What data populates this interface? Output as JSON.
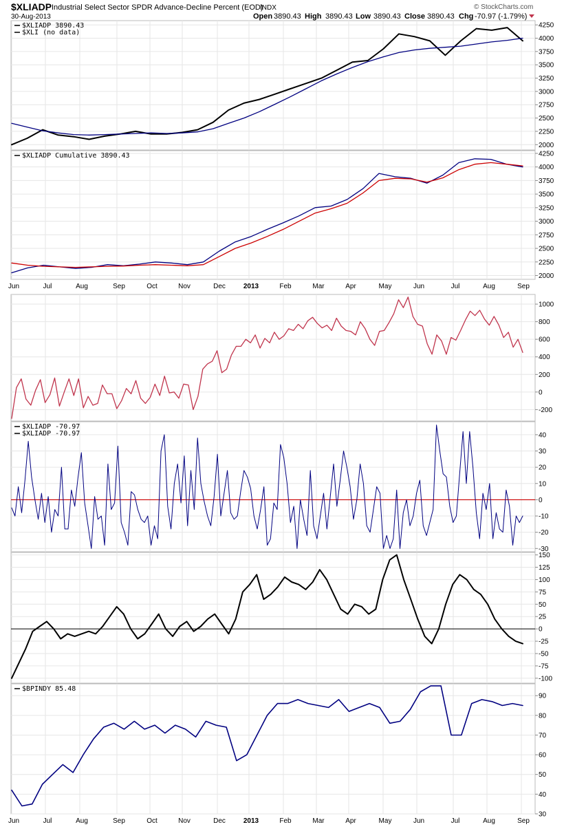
{
  "header": {
    "symbol": "$XLIADP",
    "description": "Industrial Select Sector SPDR Advance-Decline Percent (EOD)",
    "exchange": "INDX",
    "date": "30-Aug-2013",
    "open_label": "Open",
    "open_value": "3890.43",
    "high_label": "High",
    "high_value": "3890.43",
    "low_label": "Low",
    "low_value": "3890.43",
    "close_label": "Close",
    "close_value": "3890.43",
    "chg_label": "Chg",
    "chg_value": "-70.97 (-1.79%)",
    "copyright": "© StockCharts.com"
  },
  "colors": {
    "black": "#000000",
    "navy": "#000080",
    "red": "#cc0000",
    "crimson": "#c0344c",
    "grid": "#e6e6e6",
    "panel_border": "#bbbbbb"
  },
  "x_axis_top": [
    "Jun",
    "Jul",
    "Aug",
    "Sep",
    "Oct",
    "Nov",
    "Dec",
    "2013",
    "Feb",
    "Mar",
    "Apr",
    "May",
    "Jun",
    "Jul",
    "Aug",
    "Sep"
  ],
  "x_axis_bottom": [
    "Jun",
    "Jul",
    "Aug",
    "Sep",
    "Oct",
    "Nov",
    "Dec",
    "2013",
    "Feb",
    "Mar",
    "Apr",
    "May",
    "Jun",
    "Jul",
    "Aug",
    "Sep"
  ],
  "chart_data": [
    {
      "type": "line",
      "panel": "price",
      "legend": [
        {
          "label": "$XLIADP 3890.43",
          "color": "#000000"
        },
        {
          "label": "$XLI (no data)",
          "color": "#000000"
        }
      ],
      "ylim": [
        1900,
        4330
      ],
      "yticks": [
        2000,
        2250,
        2500,
        2750,
        3000,
        3250,
        3500,
        3750,
        4000,
        4250
      ],
      "series": [
        {
          "color": "#000000",
          "width": 2,
          "values": [
            2000,
            2120,
            2280,
            2180,
            2150,
            2100,
            2160,
            2200,
            2250,
            2200,
            2200,
            2230,
            2280,
            2420,
            2650,
            2780,
            2850,
            2950,
            3050,
            3150,
            3250,
            3400,
            3550,
            3580,
            3800,
            4080,
            4030,
            3950,
            3680,
            3950,
            4180,
            4150,
            4200,
            3950
          ]
        },
        {
          "color": "#000080",
          "width": 1.3,
          "values": [
            2400,
            2330,
            2260,
            2220,
            2190,
            2180,
            2190,
            2200,
            2210,
            2220,
            2210,
            2220,
            2240,
            2300,
            2400,
            2500,
            2620,
            2760,
            2900,
            3050,
            3200,
            3330,
            3450,
            3560,
            3650,
            3730,
            3780,
            3810,
            3830,
            3850,
            3890,
            3930,
            3960,
            4000
          ]
        }
      ]
    },
    {
      "type": "line",
      "panel": "cumulative",
      "legend": [
        {
          "label": "$XLIADP Cumulative 3890.43",
          "color": "#000000"
        }
      ],
      "ylim": [
        1930,
        4300
      ],
      "yticks": [
        2000,
        2250,
        2500,
        2750,
        3000,
        3250,
        3500,
        3750,
        4000,
        4250
      ],
      "series": [
        {
          "color": "#000080",
          "width": 1.3,
          "values": [
            2050,
            2140,
            2190,
            2160,
            2130,
            2150,
            2200,
            2180,
            2210,
            2250,
            2230,
            2200,
            2250,
            2450,
            2620,
            2720,
            2850,
            2970,
            3100,
            3250,
            3280,
            3400,
            3600,
            3880,
            3820,
            3790,
            3700,
            3850,
            4080,
            4150,
            4140,
            4050,
            4000
          ]
        },
        {
          "color": "#cc0000",
          "width": 1.3,
          "values": [
            2230,
            2190,
            2170,
            2160,
            2150,
            2160,
            2170,
            2175,
            2190,
            2200,
            2190,
            2180,
            2200,
            2350,
            2500,
            2600,
            2720,
            2850,
            3000,
            3150,
            3230,
            3330,
            3520,
            3750,
            3790,
            3780,
            3720,
            3800,
            3950,
            4050,
            4080,
            4050,
            4020
          ]
        }
      ]
    },
    {
      "type": "line",
      "panel": "ratio",
      "legend": [],
      "ylim": [
        -330,
        1110
      ],
      "yticks": [
        -200,
        0,
        200,
        400,
        600,
        800,
        1000
      ],
      "series": [
        {
          "color": "#c0344c",
          "width": 1.3,
          "values": [
            -300,
            50,
            150,
            -80,
            -150,
            20,
            140,
            -120,
            -30,
            160,
            -160,
            0,
            150,
            -40,
            150,
            -180,
            -50,
            -150,
            -130,
            80,
            -20,
            -20,
            -190,
            -100,
            40,
            -20,
            130,
            -70,
            -130,
            -60,
            90,
            -40,
            180,
            -10,
            0,
            -70,
            90,
            80,
            -200,
            -50,
            260,
            320,
            350,
            470,
            220,
            260,
            420,
            520,
            520,
            600,
            560,
            650,
            500,
            610,
            560,
            680,
            600,
            640,
            720,
            700,
            770,
            720,
            810,
            850,
            780,
            730,
            760,
            700,
            840,
            750,
            700,
            690,
            650,
            800,
            720,
            600,
            530,
            690,
            700,
            790,
            890,
            1050,
            960,
            1080,
            860,
            770,
            750,
            550,
            430,
            650,
            580,
            430,
            620,
            590,
            700,
            820,
            920,
            870,
            930,
            830,
            760,
            860,
            760,
            620,
            680,
            510,
            600,
            450
          ]
        }
      ]
    },
    {
      "type": "line",
      "panel": "advance-decline",
      "legend": [
        {
          "label": "$XLIADP -70.97",
          "color": "#000000"
        },
        {
          "label": "$XLIADP -70.97",
          "color": "#000000"
        }
      ],
      "ylim": [
        -32,
        48
      ],
      "yticks": [
        -30,
        -20,
        -10,
        0,
        10,
        20,
        30,
        40
      ],
      "reference_line": {
        "value": 0,
        "color": "#cc0000"
      },
      "series": [
        {
          "color": "#000080",
          "width": 1,
          "values": [
            -5,
            -10,
            8,
            -8,
            12,
            36,
            14,
            0,
            -12,
            4,
            -14,
            2,
            -20,
            -6,
            -10,
            20,
            -18,
            -18,
            6,
            -4,
            14,
            29,
            -2,
            -16,
            -30,
            2,
            -12,
            -10,
            -28,
            22,
            -6,
            -2,
            33,
            -14,
            -20,
            -28,
            5,
            3,
            -6,
            -12,
            -14,
            -10,
            -28,
            -16,
            -24,
            30,
            40,
            -4,
            -18,
            10,
            22,
            -2,
            27,
            -16,
            18,
            -6,
            38,
            10,
            -1,
            -10,
            -16,
            2,
            28,
            -10,
            4,
            18,
            -8,
            -12,
            -10,
            5,
            18,
            14,
            7,
            -10,
            -18,
            -6,
            8,
            -28,
            -24,
            -2,
            -6,
            34,
            26,
            10,
            -14,
            -4,
            -30,
            0,
            -12,
            -22,
            18,
            -16,
            -24,
            -10,
            4,
            -18,
            2,
            22,
            -4,
            12,
            30,
            20,
            8,
            -12,
            0,
            22,
            10,
            -16,
            -20,
            -6,
            8,
            4,
            -30,
            -22,
            -30,
            -24,
            6,
            -30,
            -8,
            0,
            -16,
            -10,
            4,
            12,
            -16,
            -22,
            -14,
            -6,
            46,
            30,
            16,
            14,
            -4,
            -14,
            -10,
            16,
            42,
            10,
            42,
            20,
            -8,
            -24,
            4,
            -6,
            10,
            -24,
            -8,
            -18,
            -20,
            6,
            -4,
            -28,
            -10,
            -14,
            -10
          ]
        }
      ]
    },
    {
      "type": "line",
      "panel": "oscillator",
      "legend": [],
      "ylim": [
        -110,
        155
      ],
      "yticks": [
        -100,
        -75,
        -50,
        -25,
        0,
        25,
        50,
        75,
        100,
        125,
        150
      ],
      "reference_line": {
        "value": 0,
        "color": "#000000"
      },
      "series": [
        {
          "color": "#000000",
          "width": 2,
          "values": [
            -100,
            -70,
            -40,
            -5,
            5,
            15,
            0,
            -20,
            -10,
            -15,
            -10,
            -5,
            -10,
            5,
            25,
            45,
            30,
            0,
            -20,
            -10,
            10,
            30,
            0,
            -15,
            5,
            15,
            -5,
            5,
            20,
            30,
            10,
            -10,
            20,
            75,
            90,
            110,
            60,
            70,
            85,
            105,
            95,
            90,
            80,
            95,
            120,
            100,
            70,
            40,
            30,
            50,
            45,
            30,
            40,
            100,
            140,
            150,
            100,
            60,
            20,
            -15,
            -30,
            0,
            50,
            90,
            110,
            100,
            80,
            70,
            50,
            20,
            0,
            -15,
            -25,
            -30
          ]
        }
      ]
    },
    {
      "type": "line",
      "panel": "bullish-percent",
      "legend": [
        {
          "label": "$BPINDY 85.48",
          "color": "#000000"
        }
      ],
      "ylim": [
        30,
        96
      ],
      "yticks": [
        30,
        40,
        50,
        60,
        70,
        80,
        90
      ],
      "series": [
        {
          "color": "#000080",
          "width": 1.6,
          "values": [
            42,
            34,
            35,
            45,
            50,
            55,
            51,
            60,
            68,
            74,
            76,
            73,
            77,
            73,
            75,
            71,
            75,
            73,
            69,
            77,
            75,
            74,
            57,
            60,
            70,
            80,
            86,
            86,
            88,
            86,
            85,
            84,
            88,
            82,
            84,
            86,
            84,
            76,
            77,
            83,
            92,
            95,
            95,
            70,
            70,
            86,
            88,
            87,
            85,
            86,
            85
          ]
        }
      ]
    }
  ]
}
